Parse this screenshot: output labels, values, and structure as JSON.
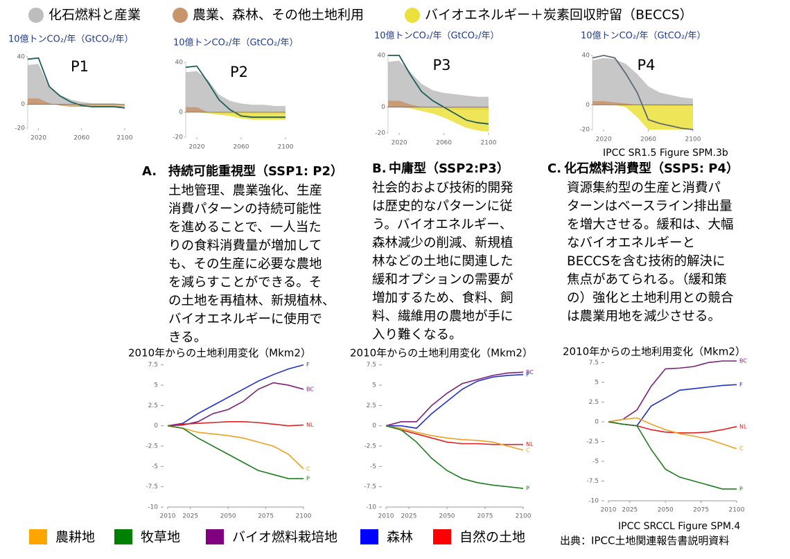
{
  "legend_top": [
    {
      "label": "化石燃料と産業",
      "color": "#bdbdbd"
    },
    {
      "label": "農業、森林、その他土地利用",
      "color": "#c8946a"
    },
    {
      "label": "バイオエネルギー＋炭素回収貯留（BECCS）",
      "color": "#ebe03c"
    }
  ],
  "scenarios": [
    {
      "letter": "A.",
      "heading": "持続可能重視型（SSP1: P2）",
      "lines": [
        "土地管理、農業強化、生産",
        "消費パターンの持続可能性",
        "を進めることで、一人当た",
        "りの食料消費量が増加して",
        "も、その生産に必要な農地",
        "を減らすことができる。そ",
        "の土地を再植林、新規植林、",
        "バイオエネルギーに使用で",
        "きる。"
      ]
    },
    {
      "letter": "B.",
      "heading": "中庸型（SSP2:P3）",
      "lines": [
        "社会的および技術的開発",
        "は歴史的なパターンに従",
        "う。バイオエネルギー、",
        "森林減少の削減、新規植",
        "林などの土地に関連した",
        "緩和オプションの需要が",
        "増加するため、食料、飼",
        "料、繊維用の農地が手に",
        "入り難くなる。"
      ]
    },
    {
      "letter": "C.",
      "heading": "化石燃料消費型（SSP5: P4）",
      "lines": [
        "資源集約型の生産と消費パ",
        "ターンはベースライン排出量",
        "を増大させる。緩和は、大幅",
        "なバイオエネルギーと",
        "BECCSを含む技術的解決に",
        "焦点があてられる。（緩和策",
        "の）強化と土地利用との競合",
        "は農業用地を減少させる。"
      ]
    }
  ],
  "legend_bottom": [
    {
      "label": "農耕地",
      "color": "#ffa500"
    },
    {
      "label": "牧草地",
      "color": "#008000"
    },
    {
      "label": "バイオ燃料栽培地",
      "color": "#800080"
    },
    {
      "label": "森林",
      "color": "#0000ff"
    },
    {
      "label": "自然の土地",
      "color": "#ff0000"
    }
  ],
  "sources": [
    "IPCC SR1.5 Figure SPM.3b",
    "IPCC SRCCL Figure SPM.4",
    "出典：IPCC土地関連報告書説明資料"
  ],
  "chart_data": [
    {
      "type": "area",
      "title": "P1",
      "y_label": "10億トンCO₂/年（GtCO₂/年）",
      "x": [
        2010,
        2020,
        2030,
        2040,
        2050,
        2060,
        2070,
        2080,
        2090,
        2100
      ],
      "xlim": [
        2010,
        2100
      ],
      "xticks": [
        2020,
        2060,
        2100
      ],
      "ylim": [
        -20,
        40
      ],
      "yticks": [
        -20,
        0,
        40
      ],
      "series": [
        {
          "color": "#bdbdbd",
          "values": [
            33,
            34,
            14,
            8,
            4,
            2,
            1,
            1,
            1,
            0
          ]
        },
        {
          "color": "#c8946a",
          "values": [
            5,
            5,
            1,
            -1,
            -2,
            -2,
            -2,
            -2,
            -2,
            -2
          ]
        },
        {
          "color": "#ebe03c",
          "values": [
            0,
            0,
            0,
            0,
            -1,
            -1,
            -1,
            -1,
            -1,
            -1
          ]
        },
        {
          "color": "#1f5c5c",
          "values": [
            38,
            39,
            15,
            7,
            2,
            -1,
            -2,
            -2,
            -2,
            -3
          ],
          "line": true
        }
      ]
    },
    {
      "type": "area",
      "title": "P2",
      "y_label": "10億トンCO₂/年（GtCO₂/年）",
      "x": [
        2010,
        2020,
        2030,
        2040,
        2050,
        2060,
        2070,
        2080,
        2090,
        2100
      ],
      "xlim": [
        2010,
        2100
      ],
      "xticks": [
        2020,
        2060,
        2100
      ],
      "ylim": [
        -20,
        40
      ],
      "yticks": [
        -20,
        0,
        40
      ],
      "series": [
        {
          "color": "#bdbdbd",
          "values": [
            32,
            33,
            26,
            14,
            9,
            7,
            6,
            6,
            5,
            5
          ]
        },
        {
          "color": "#c8946a",
          "values": [
            4,
            4,
            0,
            -1,
            -1,
            -1,
            -1,
            -1,
            -1,
            -1
          ]
        },
        {
          "color": "#ebe03c",
          "values": [
            0,
            0,
            -1,
            -2,
            -3,
            -5,
            -6,
            -6,
            -6,
            -6
          ]
        },
        {
          "color": "#1f5c5c",
          "values": [
            36,
            37,
            24,
            10,
            2,
            -3,
            -4,
            -4,
            -4,
            -4
          ],
          "line": true
        }
      ]
    },
    {
      "type": "area",
      "title": "P3",
      "y_label": "10億トンCO₂/年（GtCO₂/年）",
      "x": [
        2010,
        2020,
        2030,
        2040,
        2050,
        2060,
        2070,
        2080,
        2090,
        2100
      ],
      "xlim": [
        2010,
        2100
      ],
      "xticks": [
        2020,
        2060,
        2100
      ],
      "ylim": [
        -20,
        40
      ],
      "yticks": [
        -20,
        0,
        40
      ],
      "series": [
        {
          "color": "#bdbdbd",
          "values": [
            35,
            36,
            27,
            18,
            13,
            11,
            10,
            9,
            8,
            8
          ]
        },
        {
          "color": "#c8946a",
          "values": [
            5,
            5,
            2,
            0,
            0,
            -1,
            -2,
            -2,
            -2,
            -2
          ]
        },
        {
          "color": "#ebe03c",
          "values": [
            0,
            0,
            -1,
            -3,
            -5,
            -8,
            -12,
            -16,
            -18,
            -19
          ]
        },
        {
          "color": "#1f5c5c",
          "values": [
            40,
            40,
            25,
            12,
            5,
            0,
            -5,
            -10,
            -12,
            -13
          ],
          "line": true
        }
      ]
    },
    {
      "type": "area",
      "title": "P4",
      "y_label": "10億トンCO₂/年（GtCO₂/年）",
      "x": [
        2010,
        2020,
        2030,
        2040,
        2050,
        2060,
        2070,
        2080,
        2090,
        2100
      ],
      "xlim": [
        2010,
        2100
      ],
      "xticks": [
        2020,
        2060,
        2100
      ],
      "ylim": [
        -20,
        40
      ],
      "yticks": [
        -20,
        0,
        40
      ],
      "series": [
        {
          "color": "#bdbdbd",
          "values": [
            36,
            38,
            37,
            33,
            25,
            15,
            10,
            8,
            6,
            5
          ]
        },
        {
          "color": "#c8946a",
          "values": [
            3,
            3,
            2,
            1,
            0,
            -1,
            -1,
            -1,
            -1,
            -1
          ]
        },
        {
          "color": "#ebe03c",
          "values": [
            0,
            0,
            0,
            -2,
            -10,
            -20,
            -20,
            -20,
            -20,
            -20
          ]
        },
        {
          "color": "#606870",
          "values": [
            38,
            40,
            38,
            25,
            10,
            -12,
            -15,
            -17,
            -19,
            -20
          ],
          "line": true
        }
      ]
    },
    {
      "type": "line",
      "title": "2010年からの土地利用変化（Mkm2）",
      "x": [
        2010,
        2020,
        2030,
        2040,
        2050,
        2060,
        2070,
        2080,
        2090,
        2100
      ],
      "xlim": [
        2010,
        2100
      ],
      "xticks": [
        2010,
        2025,
        2050,
        2075,
        2100
      ],
      "ylim": [
        -10,
        8.5
      ],
      "yticks": [
        -10,
        -7.5,
        -5,
        -2.5,
        0,
        2.5,
        5,
        7.5
      ],
      "series": [
        {
          "name": "F",
          "color": "#1f2fd0",
          "values": [
            0,
            0.3,
            1.5,
            2.5,
            3.5,
            4.5,
            5.5,
            6.3,
            7,
            7.5
          ]
        },
        {
          "name": "BC",
          "color": "#7a1f7a",
          "values": [
            0,
            0.1,
            0.5,
            1.5,
            2,
            3,
            4.5,
            5.3,
            5,
            4.5
          ]
        },
        {
          "name": "NL",
          "color": "#e02020",
          "values": [
            0,
            0.2,
            0.3,
            0.4,
            0.5,
            0.5,
            0.4,
            0.2,
            0,
            0.1
          ]
        },
        {
          "name": "C",
          "color": "#f0a020",
          "values": [
            0,
            -0.3,
            -0.8,
            -1,
            -1.2,
            -1.5,
            -2,
            -2.5,
            -3.5,
            -5.3
          ]
        },
        {
          "name": "P",
          "color": "#1e7d1e",
          "values": [
            0,
            -0.3,
            -1.5,
            -2.5,
            -3.5,
            -4.5,
            -5.5,
            -6,
            -6.5,
            -6.5
          ]
        }
      ]
    },
    {
      "type": "line",
      "title": "2010年からの土地利用変化（Mkm2）",
      "x": [
        2010,
        2020,
        2030,
        2040,
        2050,
        2060,
        2070,
        2080,
        2090,
        2100
      ],
      "xlim": [
        2010,
        2100
      ],
      "xticks": [
        2010,
        2025,
        2050,
        2075,
        2100
      ],
      "ylim": [
        -10,
        8.5
      ],
      "yticks": [
        -10,
        -7.5,
        -5,
        -2.5,
        0,
        2.5,
        5,
        7.5
      ],
      "series": [
        {
          "name": "BC",
          "color": "#7a1f7a",
          "values": [
            0,
            0.5,
            0.5,
            2.5,
            4,
            5.2,
            5.7,
            6.2,
            6.5,
            6.6
          ]
        },
        {
          "name": "F",
          "color": "#1f2fd0",
          "values": [
            0,
            0,
            -0.3,
            1.5,
            3,
            4.5,
            5.5,
            6,
            6.2,
            6.3
          ]
        },
        {
          "name": "NL",
          "color": "#e02020",
          "values": [
            0,
            -0.5,
            -1,
            -1.5,
            -2,
            -2.2,
            -2.2,
            -2.3,
            -2.3,
            -2.3
          ]
        },
        {
          "name": "C",
          "color": "#f0a020",
          "values": [
            0,
            -0.3,
            -0.8,
            -1.2,
            -1.5,
            -1.7,
            -1.8,
            -2,
            -2.5,
            -3
          ]
        },
        {
          "name": "P",
          "color": "#1e7d1e",
          "values": [
            0,
            -0.5,
            -2,
            -4,
            -5.5,
            -6.5,
            -7,
            -7.3,
            -7.5,
            -7.7
          ]
        }
      ]
    },
    {
      "type": "line",
      "title": "2010年からの土地利用変化（Mkm2）",
      "x": [
        2010,
        2020,
        2030,
        2040,
        2050,
        2060,
        2070,
        2080,
        2090,
        2100
      ],
      "xlim": [
        2010,
        2100
      ],
      "xticks": [
        2010,
        2025,
        2050,
        2075,
        2100
      ],
      "ylim": [
        -10,
        8.5
      ],
      "yticks": [
        -10,
        -7.5,
        -5,
        -2.5,
        0,
        2.5,
        5,
        7.5
      ],
      "series": [
        {
          "name": "BC",
          "color": "#7a1f7a",
          "values": [
            0,
            0.3,
            1.5,
            4.5,
            6.7,
            6.8,
            7,
            7.5,
            7.7,
            7.7
          ]
        },
        {
          "name": "F",
          "color": "#1f2fd0",
          "values": [
            0,
            -0.3,
            -0.5,
            2,
            3,
            4,
            4.2,
            4.4,
            4.6,
            4.7
          ]
        },
        {
          "name": "NL",
          "color": "#e02020",
          "values": [
            0,
            -0.3,
            -0.5,
            -1,
            -1.3,
            -1.4,
            -1.4,
            -1.3,
            -1,
            -0.6
          ]
        },
        {
          "name": "C",
          "color": "#f0a020",
          "values": [
            0,
            0.3,
            0.5,
            -0.3,
            -1,
            -1.5,
            -1.8,
            -2.2,
            -2.8,
            -3.4
          ]
        },
        {
          "name": "P",
          "color": "#1e7d1e",
          "values": [
            0,
            -0.3,
            -0.5,
            -3.5,
            -6,
            -7,
            -7.5,
            -8,
            -8.5,
            -8.5
          ]
        }
      ]
    }
  ]
}
